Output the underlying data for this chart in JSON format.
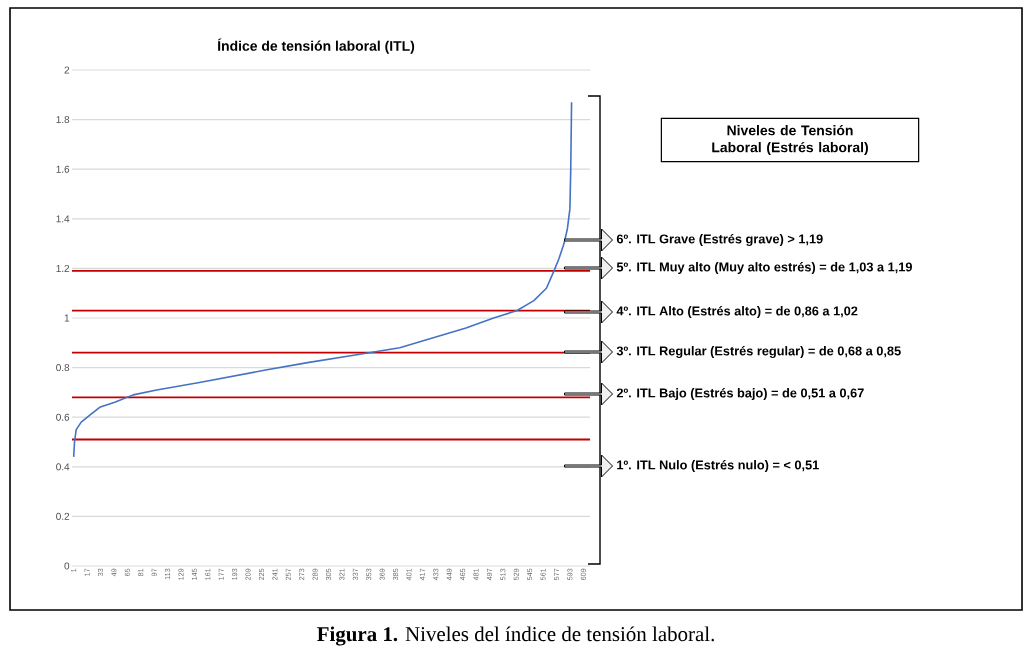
{
  "chart_data": {
    "type": "line",
    "title": "Índice de tensión laboral (ITL)",
    "x": [
      1,
      2,
      4,
      10,
      21,
      32,
      50,
      72,
      100,
      151,
      230,
      280,
      335,
      390,
      430,
      469,
      502,
      530,
      550,
      565,
      574,
      580,
      586,
      590,
      593,
      594,
      595
    ],
    "values": [
      0.44,
      0.5,
      0.55,
      0.58,
      0.61,
      0.64,
      0.66,
      0.69,
      0.71,
      0.74,
      0.79,
      0.82,
      0.85,
      0.88,
      0.92,
      0.96,
      1.0,
      1.03,
      1.07,
      1.12,
      1.19,
      1.24,
      1.3,
      1.36,
      1.44,
      1.6,
      1.87
    ],
    "color": "#4472c4",
    "xlim": [
      -1,
      617
    ],
    "xticks": [
      1,
      17,
      33,
      49,
      65,
      81,
      97,
      113,
      129,
      145,
      161,
      177,
      193,
      209,
      225,
      241,
      257,
      273,
      289,
      305,
      321,
      337,
      353,
      369,
      385,
      401,
      417,
      433,
      449,
      465,
      481,
      497,
      513,
      529,
      545,
      561,
      577,
      593,
      609
    ],
    "ylim": [
      0,
      2
    ],
    "yticks": [
      0,
      0.2,
      0.4,
      0.6,
      0.8,
      1,
      1.2,
      1.4,
      1.6,
      1.8,
      2
    ],
    "grid": "y",
    "ref_lines": [
      {
        "axis": "y",
        "value": 1.19,
        "color": "#c00000"
      },
      {
        "axis": "y",
        "value": 1.03,
        "color": "#c00000"
      },
      {
        "axis": "y",
        "value": 0.86,
        "color": "#c00000"
      },
      {
        "axis": "y",
        "value": 0.68,
        "color": "#c00000"
      },
      {
        "axis": "y",
        "value": 0.51,
        "color": "#c00000"
      }
    ],
    "annotations": [
      "Niveles de Tensión Laboral (Estrés laboral)",
      "6º. ITL Grave (Estrés grave) > 1,19",
      "5º. ITL Muy alto (Muy alto estrés) = de 1,03 a 1,19",
      "4º. ITL Alto (Estrés alto) = de 0,86 a 1,02",
      "3º. ITL Regular (Estrés regular) = de 0,68 a 0,85",
      "2º. ITL Bajo (Estrés bajo) = de 0,51 a 0,67",
      "1º. ITL Nulo (Estrés nulo) = < 0,51",
      "**Figura 1.** Niveles del índice de tensión laboral."
    ]
  }
}
